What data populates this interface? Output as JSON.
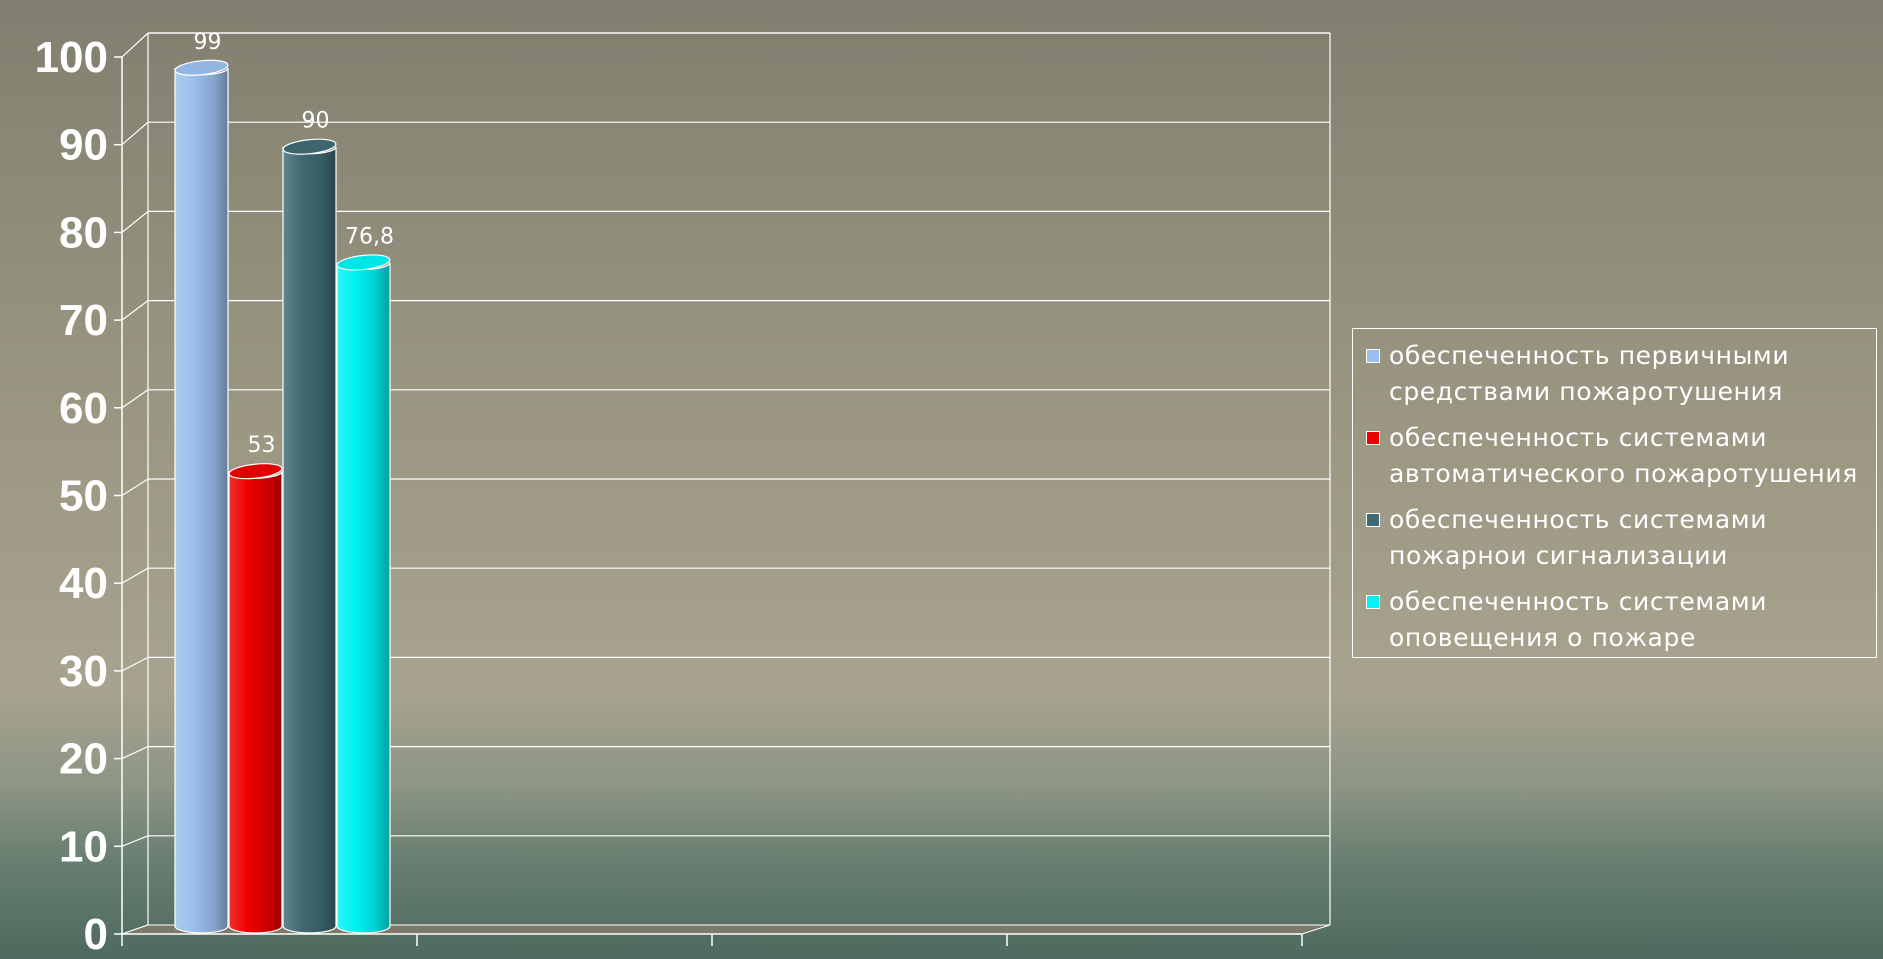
{
  "chart_data": {
    "type": "bar",
    "title": "",
    "xlabel": "",
    "ylabel": "",
    "ylim": [
      0,
      100
    ],
    "yticks": [
      "0",
      "10",
      "20",
      "30",
      "40",
      "50",
      "60",
      "70",
      "80",
      "90",
      "100"
    ],
    "grid": true,
    "legend_position": "right",
    "series": [
      {
        "name_lines": [
          "обеспеченность первичными",
          "средствами пожаротушения"
        ],
        "value": 99,
        "label": "99",
        "color": "#9bbfed"
      },
      {
        "name_lines": [
          "обеспеченность системами",
          "автоматического пожаротушения"
        ],
        "value": 53,
        "label": "53",
        "color": "#ee0000"
      },
      {
        "name_lines": [
          "обеспеченность системами",
          "пожарнои сигнализации"
        ],
        "value": 90,
        "label": "90",
        "color": "#3f6a73"
      },
      {
        "name_lines": [
          "обеспеченность системами",
          "оповещения о пожаре"
        ],
        "value": 76.8,
        "label": "76,8",
        "color": "#00f2f2"
      }
    ]
  }
}
